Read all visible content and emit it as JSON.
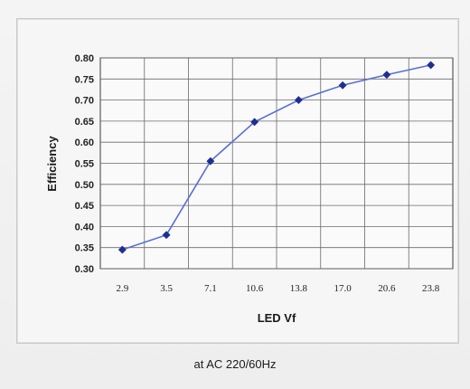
{
  "chart_data": {
    "type": "line",
    "categories": [
      "2.9",
      "3.5",
      "7.1",
      "10.6",
      "13.8",
      "17.0",
      "20.6",
      "23.8"
    ],
    "series": [
      {
        "values": [
          0.345,
          0.38,
          0.555,
          0.648,
          0.7,
          0.735,
          0.76,
          0.783
        ]
      }
    ],
    "xlabel": "LED Vf",
    "ylabel": "Efficiency",
    "ylim": [
      0.3,
      0.8
    ],
    "yticks": [
      "0.30",
      "0.35",
      "0.40",
      "0.45",
      "0.50",
      "0.55",
      "0.60",
      "0.65",
      "0.70",
      "0.75",
      "0.80"
    ],
    "grid": true,
    "colors": {
      "line": "#5a6fd6",
      "marker": "#1f2f8f",
      "grid": "#6a6a6a"
    }
  },
  "caption": "at AC 220/60Hz"
}
